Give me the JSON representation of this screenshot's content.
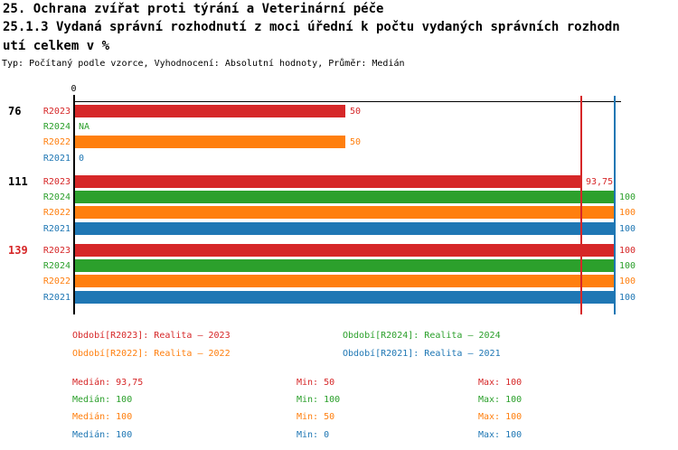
{
  "header": {
    "title_lines": [
      "25. Ochrana zvířat proti týrání a Veterinární péče",
      "25.1.3 Vydaná správní rozhodnutí z moci úřední k počtu vydaných správních rozhodn",
      "utí celkem v %"
    ],
    "subtitle": "Typ: Počítaný podle vzorce, Vyhodnocení: Absolutní hodnoty, Průměr: Medián"
  },
  "colors": {
    "red": "#d62728",
    "green": "#2ca02c",
    "orange": "#ff7f0e",
    "blue": "#1f77b4",
    "axis": "#000000",
    "text": "#000000",
    "background": "#ffffff"
  },
  "chart_data": {
    "type": "bar",
    "orientation": "horizontal",
    "x_axis": {
      "min": 0,
      "max": 100,
      "tick_labels": [
        "0"
      ],
      "position": "top"
    },
    "series": [
      {
        "id": "R2023",
        "name": "Realita – 2023",
        "color": "#d62728"
      },
      {
        "id": "R2024",
        "name": "Realita – 2024",
        "color": "#2ca02c"
      },
      {
        "id": "R2022",
        "name": "Realita – 2022",
        "color": "#ff7f0e"
      },
      {
        "id": "R2021",
        "name": "Realita – 2021",
        "color": "#1f77b4"
      }
    ],
    "groups": [
      {
        "label": "76",
        "label_color": "#000000",
        "rows": [
          {
            "series": "R2023",
            "value": 50,
            "display": "50"
          },
          {
            "series": "R2024",
            "value": null,
            "display": "NA"
          },
          {
            "series": "R2022",
            "value": 50,
            "display": "50"
          },
          {
            "series": "R2021",
            "value": 0,
            "display": "0"
          }
        ]
      },
      {
        "label": "111",
        "label_color": "#000000",
        "rows": [
          {
            "series": "R2023",
            "value": 93.75,
            "display": "93,75"
          },
          {
            "series": "R2024",
            "value": 100,
            "display": "100"
          },
          {
            "series": "R2022",
            "value": 100,
            "display": "100"
          },
          {
            "series": "R2021",
            "value": 100,
            "display": "100"
          }
        ]
      },
      {
        "label": "139",
        "label_color": "#d62728",
        "rows": [
          {
            "series": "R2023",
            "value": 100,
            "display": "100"
          },
          {
            "series": "R2024",
            "value": 100,
            "display": "100"
          },
          {
            "series": "R2022",
            "value": 100,
            "display": "100"
          },
          {
            "series": "R2021",
            "value": 100,
            "display": "100"
          }
        ]
      }
    ],
    "guide_lines": [
      {
        "value": 93.75,
        "color": "#d62728"
      },
      {
        "value": 100,
        "color": "#1f77b4"
      }
    ]
  },
  "legend": {
    "items": [
      {
        "text": "Období[R2023]: Realita – 2023",
        "color": "#d62728"
      },
      {
        "text": "Období[R2024]: Realita – 2024",
        "color": "#2ca02c"
      },
      {
        "text": "Období[R2022]: Realita – 2022",
        "color": "#ff7f0e"
      },
      {
        "text": "Období[R2021]: Realita – 2021",
        "color": "#1f77b4"
      }
    ]
  },
  "stats": {
    "rows": [
      {
        "median": "Medián: 93,75",
        "min": "Min: 50",
        "max": "Max: 100",
        "color": "#d62728"
      },
      {
        "median": "Medián: 100",
        "min": "Min: 100",
        "max": "Max: 100",
        "color": "#2ca02c"
      },
      {
        "median": "Medián: 100",
        "min": "Min: 50",
        "max": "Max: 100",
        "color": "#ff7f0e"
      },
      {
        "median": "Medián: 100",
        "min": "Min: 0",
        "max": "Max: 100",
        "color": "#1f77b4"
      }
    ]
  }
}
